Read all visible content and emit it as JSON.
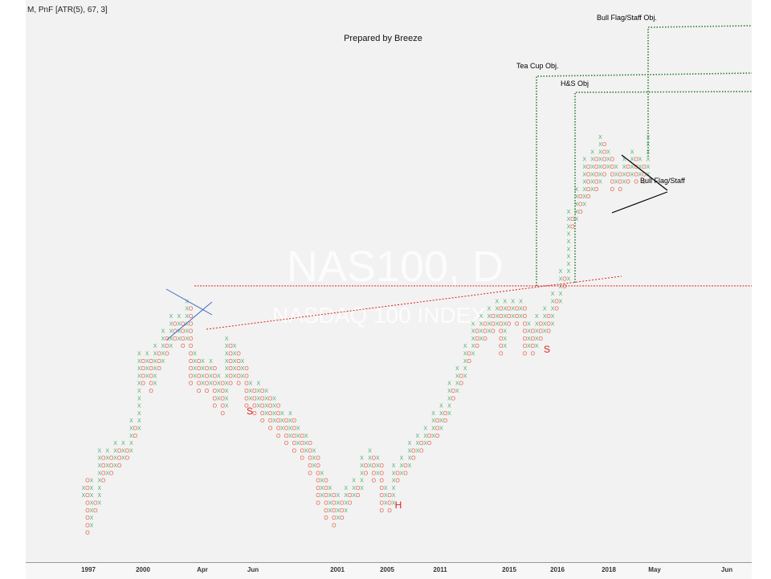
{
  "chart_data": {
    "type": "point-and-figure",
    "header": "M, PnF [ATR(5), 67, 3]",
    "title": "Prepared by Breeze",
    "watermark_line1": "NAS100, D",
    "watermark_line2": "NASDAQ 100 INDEX",
    "x_ticks": [
      "1997",
      "2000",
      "Apr",
      "Jun",
      "2001",
      "2005",
      "2011",
      "2015",
      "2016",
      "2018",
      "May",
      "Jun"
    ],
    "series": [
      {
        "name": "",
        "role": "columns",
        "x_symbol": "X",
        "o_symbol": "O",
        "columns": [
          [
            1,
            6,
            7
          ],
          [
            0,
            1,
            8
          ],
          [
            1,
            2,
            8
          ],
          [
            0,
            4,
            5
          ],
          [
            1,
            5,
            12
          ],
          [
            0,
            8,
            11
          ],
          [
            1,
            9,
            12
          ],
          [
            0,
            9,
            11
          ],
          [
            1,
            10,
            13
          ],
          [
            0,
            10,
            12
          ],
          [
            1,
            11,
            13
          ],
          [
            0,
            11,
            12
          ],
          [
            1,
            12,
            16
          ],
          [
            0,
            14,
            15
          ],
          [
            1,
            15,
            25
          ],
          [
            0,
            21,
            24
          ],
          [
            1,
            22,
            25
          ],
          [
            0,
            20,
            24
          ],
          [
            1,
            21,
            26
          ],
          [
            0,
            23,
            25
          ],
          [
            1,
            24,
            28
          ],
          [
            0,
            25,
            27
          ],
          [
            1,
            26,
            30
          ],
          [
            0,
            27,
            29
          ],
          [
            1,
            27,
            30
          ],
          [
            0,
            26,
            29
          ],
          [
            1,
            27,
            32
          ],
          [
            0,
            21,
            31
          ],
          [
            1,
            22,
            25
          ],
          [
            0,
            20,
            24
          ],
          [
            1,
            21,
            24
          ],
          [
            0,
            20,
            23
          ],
          [
            1,
            21,
            24
          ],
          [
            0,
            18,
            23
          ],
          [
            1,
            19,
            22
          ],
          [
            0,
            17,
            21
          ],
          [
            1,
            18,
            27
          ],
          [
            0,
            21,
            26
          ],
          [
            1,
            22,
            26
          ],
          [
            0,
            21,
            25
          ],
          [
            1,
            22,
            24
          ],
          [
            0,
            18,
            23
          ],
          [
            1,
            19,
            21
          ],
          [
            0,
            17,
            20
          ],
          [
            1,
            18,
            21
          ],
          [
            0,
            16,
            20
          ],
          [
            1,
            17,
            20
          ],
          [
            0,
            15,
            19
          ],
          [
            1,
            16,
            19
          ],
          [
            0,
            14,
            18
          ],
          [
            1,
            15,
            17
          ],
          [
            0,
            13,
            16
          ],
          [
            1,
            14,
            17
          ],
          [
            0,
            12,
            16
          ],
          [
            1,
            13,
            15
          ],
          [
            0,
            11,
            14
          ],
          [
            1,
            12,
            14
          ],
          [
            0,
            9,
            13
          ],
          [
            1,
            10,
            12
          ],
          [
            0,
            5,
            11
          ],
          [
            1,
            6,
            9
          ],
          [
            0,
            3,
            8
          ],
          [
            1,
            4,
            7
          ],
          [
            0,
            2,
            6
          ],
          [
            1,
            3,
            6
          ],
          [
            0,
            3,
            5
          ],
          [
            1,
            4,
            7
          ],
          [
            0,
            5,
            6
          ],
          [
            1,
            6,
            8
          ],
          [
            0,
            6,
            7
          ],
          [
            1,
            7,
            11
          ],
          [
            0,
            9,
            10
          ],
          [
            1,
            10,
            12
          ],
          [
            0,
            8,
            11
          ],
          [
            1,
            9,
            11
          ],
          [
            0,
            4,
            10
          ],
          [
            1,
            5,
            7
          ],
          [
            0,
            4,
            6
          ],
          [
            1,
            5,
            10
          ],
          [
            0,
            8,
            9
          ],
          [
            1,
            9,
            11
          ],
          [
            0,
            9,
            10
          ],
          [
            1,
            10,
            13
          ],
          [
            0,
            11,
            12
          ],
          [
            1,
            12,
            14
          ],
          [
            0,
            12,
            13
          ],
          [
            1,
            13,
            15
          ],
          [
            0,
            13,
            14
          ],
          [
            1,
            14,
            17
          ],
          [
            0,
            14,
            16
          ],
          [
            1,
            15,
            18
          ],
          [
            0,
            16,
            17
          ],
          [
            1,
            17,
            21
          ],
          [
            0,
            19,
            20
          ],
          [
            1,
            20,
            23
          ],
          [
            0,
            21,
            22
          ],
          [
            1,
            22,
            26
          ],
          [
            0,
            24,
            25
          ],
          [
            1,
            25,
            29
          ],
          [
            0,
            26,
            28
          ],
          [
            1,
            27,
            30
          ],
          [
            0,
            27,
            29
          ],
          [
            1,
            28,
            31
          ],
          [
            0,
            28,
            30
          ],
          [
            1,
            29,
            32
          ],
          [
            0,
            25,
            31
          ],
          [
            1,
            26,
            32
          ],
          [
            0,
            29,
            31
          ],
          [
            1,
            30,
            32
          ],
          [
            0,
            29,
            31
          ],
          [
            1,
            30,
            32
          ],
          [
            0,
            25,
            31
          ],
          [
            1,
            26,
            29
          ],
          [
            0,
            25,
            28
          ],
          [
            1,
            26,
            30
          ],
          [
            0,
            27,
            29
          ],
          [
            1,
            28,
            31
          ],
          [
            0,
            28,
            30
          ],
          [
            1,
            29,
            33
          ],
          [
            0,
            31,
            32
          ],
          [
            1,
            32,
            36
          ],
          [
            0,
            34,
            35
          ],
          [
            1,
            35,
            44
          ],
          [
            0,
            42,
            43
          ],
          [
            1,
            43,
            47
          ],
          [
            0,
            44,
            46
          ],
          [
            1,
            45,
            51
          ],
          [
            0,
            46,
            50
          ],
          [
            1,
            47,
            52
          ],
          [
            0,
            47,
            51
          ],
          [
            1,
            48,
            54
          ],
          [
            0,
            49,
            53
          ],
          [
            1,
            50,
            52
          ],
          [
            0,
            47,
            51
          ],
          [
            1,
            48,
            50
          ],
          [
            0,
            47,
            49
          ],
          [
            1,
            48,
            51
          ],
          [
            0,
            48,
            50
          ],
          [
            1,
            49,
            52
          ],
          [
            0,
            48,
            51
          ],
          [
            1,
            49,
            51
          ],
          [
            0,
            48,
            50
          ],
          [
            1,
            49,
            54
          ]
        ]
      }
    ],
    "annotations": [
      {
        "text": "S",
        "color": "#e0201c"
      },
      {
        "text": "H",
        "color": "#e0201c"
      },
      {
        "text": "S",
        "color": "#e0201c"
      },
      {
        "text": "Tea Cup Obj.",
        "color": "#000000"
      },
      {
        "text": "H&S Obj",
        "color": "#000000"
      },
      {
        "text": "Bull Flag/Staff Obj.",
        "color": "#000000"
      },
      {
        "text": "Bull Flag/Staff",
        "color": "#000000"
      }
    ],
    "colors": {
      "x": "#4caf6a",
      "o": "#e8604c",
      "neckline": "#e0201c",
      "objective": "#2e7d32",
      "triangle": "#000000",
      "top_lines": "#3b6ec2"
    },
    "grid": false
  }
}
